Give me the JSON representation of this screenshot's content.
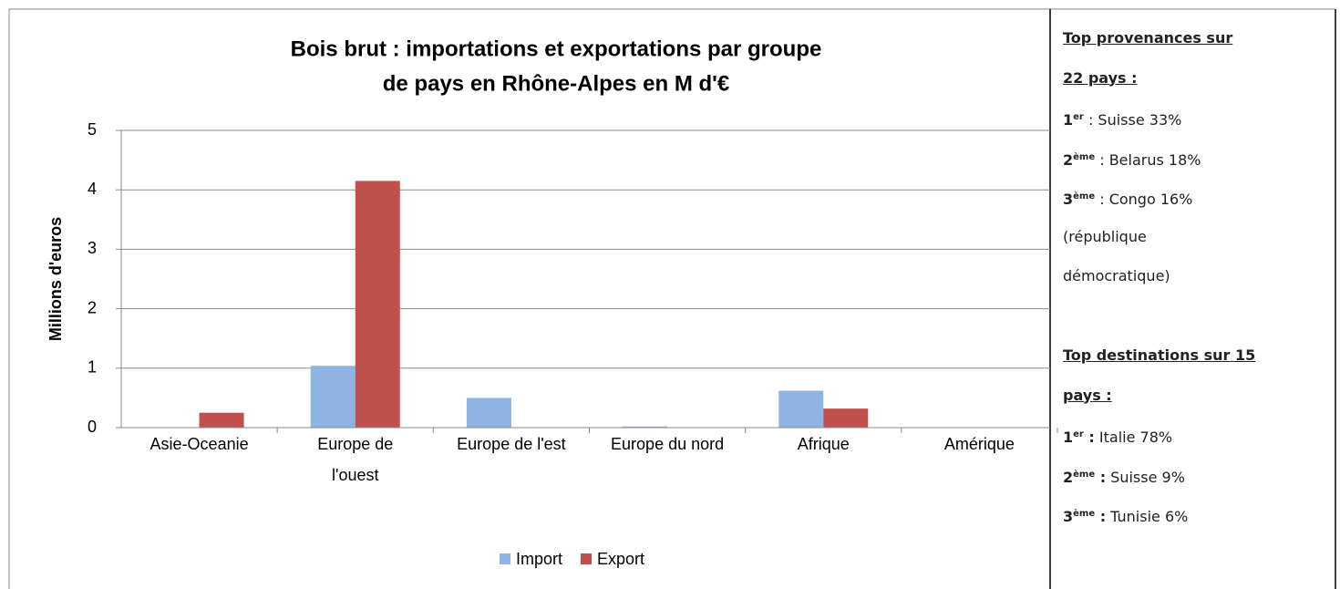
{
  "chart_data": {
    "type": "bar",
    "title": [
      "Bois brut : importations et exportations par groupe",
      "de pays en Rhône-Alpes en M d'€"
    ],
    "ylabel": "Millions d'euros",
    "categories": [
      "Asie-Oceanie",
      "Europe de l'ouest",
      "Europe de l'est",
      "Europe du nord",
      "Afrique",
      "Amérique"
    ],
    "series": [
      {
        "name": "Import",
        "color": "#8db4e2",
        "values": [
          0,
          1.04,
          0.5,
          0.02,
          0.62,
          0
        ]
      },
      {
        "name": "Export",
        "color": "#c0504d",
        "values": [
          0.25,
          4.15,
          0,
          0,
          0.32,
          0
        ]
      }
    ],
    "ylim": [
      0,
      5
    ],
    "yticks": [
      0,
      1,
      2,
      3,
      4,
      5
    ],
    "grid": true,
    "legend": "bottom"
  },
  "panel": {
    "sections": [
      {
        "heading": [
          "Top provenances sur",
          "22 pays :"
        ],
        "items": [
          {
            "rank": "1",
            "sup": "er",
            "text": " : Suisse 33%"
          },
          {
            "rank": "2",
            "sup": "ème",
            "text": " : Belarus 18%"
          },
          {
            "rank": "3",
            "sup": "ème",
            "text": " : Congo 16%",
            "lines": [
              "(république",
              "démocratique)"
            ]
          }
        ]
      },
      {
        "heading": [
          "Top destinations sur 15",
          "pays :"
        ],
        "items": [
          {
            "rank": "1",
            "sup": "er",
            "sep": " :",
            "text": " Italie 78%"
          },
          {
            "rank": "2",
            "sup": "ème",
            "sep": " :",
            "text": " Suisse 9%"
          },
          {
            "rank": "3",
            "sup": "ème",
            "sep": " :",
            "text": " Tunisie 6%"
          }
        ]
      }
    ]
  }
}
